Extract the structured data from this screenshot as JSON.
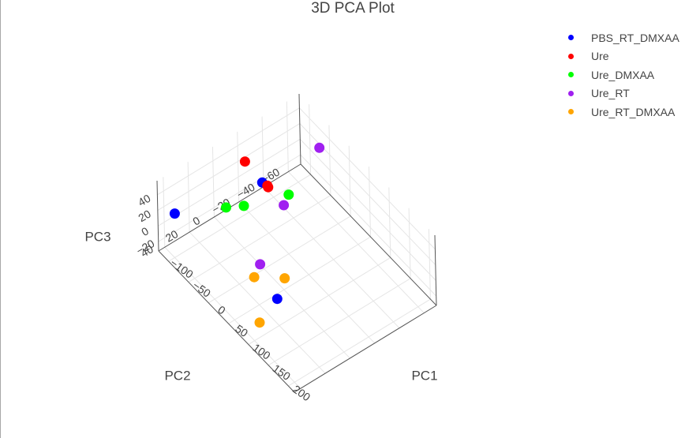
{
  "chart_data": {
    "type": "scatter",
    "dimension": "3d",
    "title": "3D PCA Plot",
    "axes": {
      "x": {
        "label": "PC1",
        "ticks": [
          -100,
          -50,
          0,
          50,
          100,
          150,
          200
        ],
        "tick_labels": [
          "−100",
          "−50",
          "0",
          "50",
          "100",
          "150",
          "200"
        ],
        "range": [
          -125,
          215
        ]
      },
      "y": {
        "label": "PC2",
        "ticks": [
          -60,
          -40,
          -20,
          0,
          20,
          40
        ],
        "tick_labels": [
          "−60",
          "−40",
          "−20",
          "0",
          "20",
          "40"
        ],
        "range": [
          -70,
          45
        ]
      },
      "z": {
        "label": "PC3",
        "ticks": [
          -20,
          0,
          20,
          40
        ],
        "tick_labels": [
          "−20",
          "0",
          "20",
          "40"
        ],
        "range": [
          -32,
          58
        ]
      }
    },
    "grid": true,
    "legend_position": "top-right",
    "series": [
      {
        "name": "PBS_RT_DMXAA",
        "color": "#0000FF",
        "points": [
          {
            "x": -32,
            "y": -10,
            "z": 52
          },
          {
            "x": -120,
            "y": 33,
            "z": 7
          },
          {
            "x": 138,
            "y": 33,
            "z": 35
          }
        ]
      },
      {
        "name": "Ure",
        "color": "#FF0000",
        "points": [
          {
            "x": -75,
            "y": -10,
            "z": 56
          },
          {
            "x": -19,
            "y": -10,
            "z": 55
          },
          {
            "x": -17,
            "y": -10,
            "z": 54
          }
        ]
      },
      {
        "name": "Ure_DMXAA",
        "color": "#00FF00",
        "points": [
          {
            "x": -78,
            "y": 5,
            "z": 10
          },
          {
            "x": -58,
            "y": -3,
            "z": 15
          },
          {
            "x": -42,
            "y": -34,
            "z": 8
          }
        ]
      },
      {
        "name": "Ure_RT",
        "color": "#A020F0",
        "points": [
          {
            "x": -76,
            "y": -70,
            "z": 15
          },
          {
            "x": -10,
            "y": -20,
            "z": 25
          },
          {
            "x": 96,
            "y": 33,
            "z": 57
          }
        ]
      },
      {
        "name": "Ure_RT_DMXAA",
        "color": "#FFA500",
        "points": [
          {
            "x": 80,
            "y": 33,
            "z": 32
          },
          {
            "x": 110,
            "y": 18,
            "z": 32
          },
          {
            "x": 130,
            "y": 45,
            "z": 12
          }
        ]
      }
    ]
  }
}
